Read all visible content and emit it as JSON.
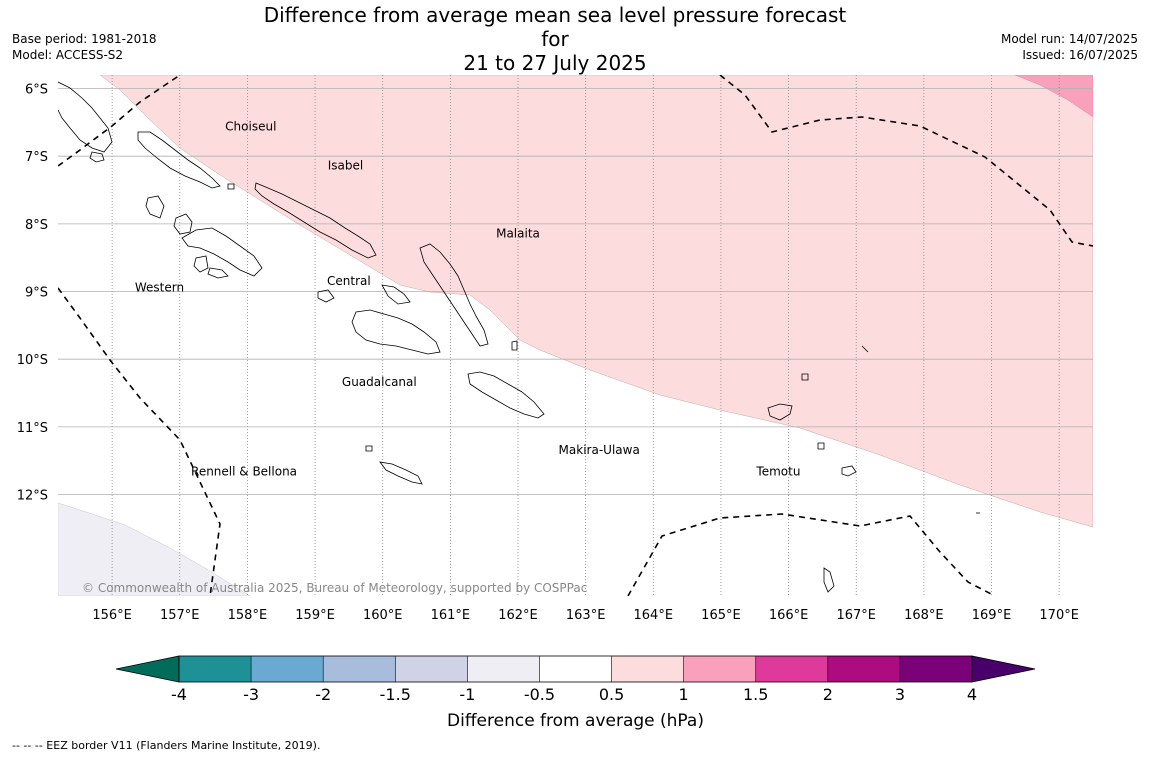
{
  "title_line1": "Difference from average mean sea level pressure forecast for",
  "title_line2": "21 to 27 July 2025",
  "base_period": "Base period: 1981-2018",
  "model": "Model: ACCESS-S2",
  "model_run": "Model run: 14/07/2025",
  "issued": "Issued: 16/07/2025",
  "copyright": "© Commonwealth of Australia 2025, Bureau of Meteorology, supported by COSPPac",
  "footnote": "--  --  -- EEZ border V11 (Flanders Marine Institute, 2019).",
  "map": {
    "lon_min": 155.2,
    "lon_max": 170.5,
    "lat_top": -5.8,
    "lat_bottom": -13.5,
    "lon_ticks": [
      156,
      157,
      158,
      159,
      160,
      161,
      162,
      163,
      164,
      165,
      166,
      167,
      168,
      169,
      170
    ],
    "lon_labels": [
      "156°E",
      "157°E",
      "158°E",
      "159°E",
      "160°E",
      "161°E",
      "162°E",
      "163°E",
      "164°E",
      "165°E",
      "166°E",
      "167°E",
      "168°E",
      "169°E",
      "170°E"
    ],
    "lat_ticks": [
      -6,
      -7,
      -8,
      -9,
      -10,
      -11,
      -12
    ],
    "lat_labels": [
      "6°S",
      "7°S",
      "8°S",
      "9°S",
      "10°S",
      "11°S",
      "12°S"
    ],
    "regions": [
      {
        "name": "Choiseul",
        "lon": 158.05,
        "lat": -6.62
      },
      {
        "name": "Isabel",
        "lon": 159.45,
        "lat": -7.2
      },
      {
        "name": "Malaita",
        "lon": 162.0,
        "lat": -8.2
      },
      {
        "name": "Western",
        "lon": 156.7,
        "lat": -9.0
      },
      {
        "name": "Central",
        "lon": 159.5,
        "lat": -8.9
      },
      {
        "name": "Guadalcanal",
        "lon": 159.95,
        "lat": -10.4
      },
      {
        "name": "Makira-Ulawa",
        "lon": 163.2,
        "lat": -11.4
      },
      {
        "name": "Temotu",
        "lon": 165.85,
        "lat": -11.72
      },
      {
        "name": "Rennell & Bellona",
        "lon": 157.95,
        "lat": -11.72
      }
    ]
  },
  "colorbar": {
    "title": "Difference from average (hPa)",
    "labels": [
      "-4",
      "-3",
      "-2",
      "-1.5",
      "-1",
      "-0.5",
      "0.5",
      "1",
      "1.5",
      "2",
      "3",
      "4"
    ],
    "colors": [
      "#1e9196",
      "#6aaad2",
      "#a8bcdc",
      "#d0d2e6",
      "#f0eef5",
      "#ffffff",
      "#fddcdd",
      "#f9a0bc",
      "#de3a9c",
      "#ad0b80",
      "#7a0177"
    ],
    "under_color": "#016c59",
    "over_color": "#49006a"
  },
  "anomaly_colors": {
    "positive_0_5_to_1": "#fddcdd",
    "positive_1_to_1_5": "#f9a0bc",
    "negative_0_5_to_1": "#f0eef5"
  }
}
